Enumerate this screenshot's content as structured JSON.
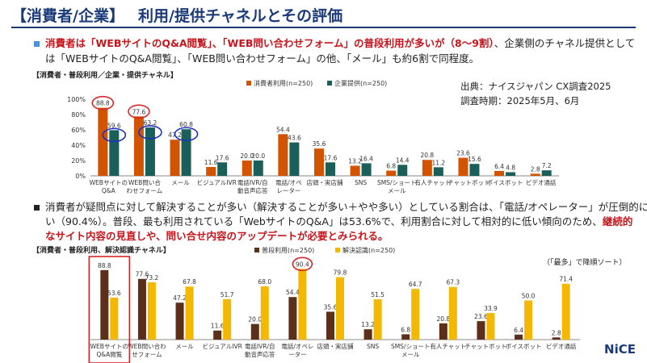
{
  "title": {
    "bracket": "【消費者/企業】",
    "rest": "利用/提供チャネルとその評価"
  },
  "para1": {
    "line1_red": "消費者は「WEBサイトのQ&A閲覧」、「WEB問い合わせフォーム」の普段利用が多いが（8～9割）",
    "line1_tail": "、企業側のチャネル提供として",
    "line2": "は「WEBサイトのQ&A閲覧」、「WEB問い合わせフォーム」の他、「メール」も約6割で同程度。"
  },
  "para2": {
    "line1": "消費者が疑問点に対して解決することが多い（解決することが多い＋やや多い）としている割合は、「電話/オペレーター」が圧倒的に高",
    "line2_a": "い（90.4%）。普段、最も利用されている「WebサイトのQ&A」は53.6%で、利用割合に対して相対的に低い傾向のため、",
    "line2_red": "継続的",
    "line3_red": "なサイト内容の見直しや、問い合せ内容のアップデートが必要とみられる。"
  },
  "source": {
    "line1": "出典：ナイスジャパン CX調査2025",
    "line2": "調査時期：2025年5月、6月"
  },
  "note": "（「最多」で降順ソート）",
  "brand": "NiCE",
  "colors": {
    "navy": "#1a3a78",
    "bullet1": "#4a90d9",
    "orange": "#d35400",
    "teal": "#1a5f5a",
    "brown": "#5c2f1a",
    "yellow": "#f5b800",
    "red_circle": "#d62728",
    "blue_circle": "#1f2fbf"
  },
  "chart_data": [
    {
      "type": "bar",
      "subtitle": "【消費者・普段利用／企業・提供チャネル】",
      "categories": [
        "WEBサイトの\nQ&A",
        "WEB問い合\nわせフォーム",
        "メール",
        "ビジュアルIVR",
        "電話IVR/自\n動音声応答",
        "電話/オペ\nレーター",
        "店頭・実店舗",
        "SNS",
        "SMS/ショート\nメール",
        "有人チャット",
        "チャットボット",
        "ボイスボット",
        "ビデオ通話"
      ],
      "series": [
        {
          "name": "消費者利用(n=250)",
          "values": [
            88.8,
            77.6,
            47.2,
            11.6,
            20.0,
            54.4,
            35.6,
            13.2,
            6.8,
            20.8,
            23.6,
            6.4,
            2.8
          ]
        },
        {
          "name": "企業提供(n=250)",
          "values": [
            59.6,
            63.2,
            60.8,
            17.6,
            20.0,
            43.6,
            17.6,
            16.4,
            14.4,
            11.2,
            15.6,
            4.8,
            7.2
          ]
        }
      ],
      "yticks": [
        "0%",
        "20%",
        "40%",
        "60%",
        "80%",
        "100%"
      ],
      "ylim": [
        0,
        100
      ],
      "legend": "top"
    },
    {
      "type": "bar",
      "subtitle": "【消費者・普段利用、解決認識チャネル】",
      "categories": [
        "WEBサイトの\nQ&A閲覧",
        "WEB問い合わ\nせフォーム",
        "メール",
        "ビジュアルIVR",
        "電話IVR/自\n動音声応答",
        "電話/オペレ\nーター",
        "店頭・実店舗",
        "SNS",
        "SMS/ショート\nメール",
        "有人チャット",
        "チャットボット",
        "ボイスボット",
        "ビデオ通話"
      ],
      "series": [
        {
          "name": "普段利用(n=250)",
          "values": [
            88.8,
            77.6,
            47.2,
            11.6,
            20.0,
            54.4,
            35.6,
            13.2,
            6.8,
            20.8,
            23.6,
            6.4,
            2.8
          ]
        },
        {
          "name": "解決認識(n=250)",
          "values": [
            53.6,
            73.2,
            67.8,
            51.7,
            68.0,
            90.4,
            79.8,
            51.5,
            64.7,
            67.3,
            33.9,
            50.0,
            71.4
          ]
        }
      ],
      "ylim": [
        0,
        100
      ],
      "legend": "top"
    }
  ]
}
